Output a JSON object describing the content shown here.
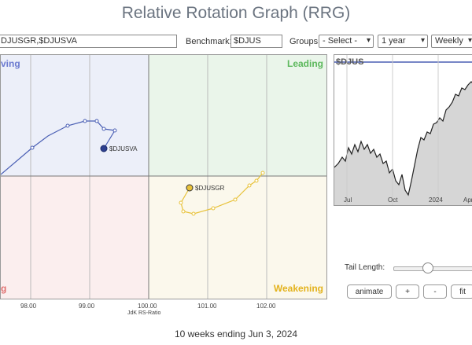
{
  "title": "Relative Rotation Graph (RRG)",
  "controls": {
    "symbols": "DJUSGR,$DJUSVA",
    "benchmark_label": "Benchmark:",
    "benchmark": "$DJUS",
    "groups_label": "Groups:",
    "groups_value": "- Select -",
    "period_value": "1 year",
    "frequency_value": "Weekly"
  },
  "quadrants": {
    "improving": "ving",
    "leading": "Leading",
    "lagging": "g",
    "weakening": "Weakening"
  },
  "series": [
    {
      "name": "$DJUSVA",
      "color": "#4a5fb4"
    },
    {
      "name": "$DJUSGR",
      "color": "#e8c23a"
    }
  ],
  "rrg_axis": {
    "ticks": [
      "98.00",
      "99.00",
      "100.00",
      "101.00",
      "102.00"
    ],
    "label": "JdK RS-Ratio"
  },
  "price_chart": {
    "symbol": "$DJUS",
    "x_ticks": [
      "Jul",
      "Oct",
      "2024",
      "Apr"
    ]
  },
  "tail": {
    "label": "Tail Length:"
  },
  "buttons": {
    "animate": "animate",
    "plus": "+",
    "minus": "-",
    "fit": "fit"
  },
  "footer": "10 weeks ending Jun 3, 2024",
  "colors": {
    "improving": "#6b7ad0",
    "leading": "#5cb85c",
    "lagging": "#e07070",
    "weakening": "#e3b21c"
  }
}
